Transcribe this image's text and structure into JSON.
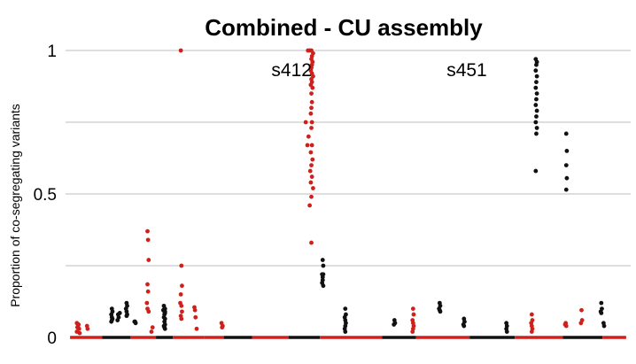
{
  "chart_data": {
    "type": "scatter",
    "title": "Combined - CU assembly",
    "xlabel": "",
    "ylabel": "Proportion of co-segregating  variants",
    "ylim": [
      0,
      1
    ],
    "xlim": [
      0,
      100
    ],
    "y_ticks": [
      {
        "value": 0,
        "label": "0"
      },
      {
        "value": 0.5,
        "label": "0.5"
      },
      {
        "value": 1,
        "label": "1"
      }
    ],
    "grid": true,
    "colors": {
      "red": "#d0201c",
      "black": "#111111",
      "grid": "#bdbdbd"
    },
    "annotations": [
      {
        "text": "s412",
        "x": 40,
        "y": 0.91
      },
      {
        "text": "s451",
        "x": 71,
        "y": 0.91
      }
    ],
    "zero_band": [
      {
        "x_start": 0.8,
        "x_end": 6.5,
        "color": "red"
      },
      {
        "x_start": 6.5,
        "x_end": 11.5,
        "color": "black"
      },
      {
        "x_start": 11.5,
        "x_end": 16.0,
        "color": "red"
      },
      {
        "x_start": 16.0,
        "x_end": 19.0,
        "color": "black"
      },
      {
        "x_start": 19.0,
        "x_end": 24.5,
        "color": "red"
      },
      {
        "x_start": 24.5,
        "x_end": 28.0,
        "color": "red"
      },
      {
        "x_start": 28.0,
        "x_end": 33.0,
        "color": "black"
      },
      {
        "x_start": 33.0,
        "x_end": 39.5,
        "color": "red"
      },
      {
        "x_start": 39.5,
        "x_end": 45.0,
        "color": "black"
      },
      {
        "x_start": 45.0,
        "x_end": 56.0,
        "color": "red"
      },
      {
        "x_start": 56.0,
        "x_end": 62.0,
        "color": "black"
      },
      {
        "x_start": 62.0,
        "x_end": 71.5,
        "color": "red"
      },
      {
        "x_start": 71.5,
        "x_end": 79.5,
        "color": "black"
      },
      {
        "x_start": 79.5,
        "x_end": 88.0,
        "color": "red"
      },
      {
        "x_start": 88.0,
        "x_end": 95.0,
        "color": "black"
      },
      {
        "x_start": 95.0,
        "x_end": 99.2,
        "color": "red"
      }
    ],
    "series": [
      {
        "name": "red",
        "color": "#d0201c",
        "points": [
          [
            2.0,
            0.05
          ],
          [
            2.2,
            0.04
          ],
          [
            2.1,
            0.035
          ],
          [
            2.4,
            0.03
          ],
          [
            2.3,
            0.045
          ],
          [
            2.0,
            0.02
          ],
          [
            2.5,
            0.015
          ],
          [
            3.8,
            0.04
          ],
          [
            3.9,
            0.03
          ],
          [
            14.5,
            0.37
          ],
          [
            14.6,
            0.34
          ],
          [
            14.7,
            0.27
          ],
          [
            14.5,
            0.185
          ],
          [
            14.6,
            0.16
          ],
          [
            14.4,
            0.12
          ],
          [
            14.5,
            0.1
          ],
          [
            14.7,
            0.09
          ],
          [
            15.2,
            0.02
          ],
          [
            15.4,
            0.035
          ],
          [
            20.5,
            0.25
          ],
          [
            20.6,
            0.18
          ],
          [
            20.4,
            0.15
          ],
          [
            20.3,
            0.12
          ],
          [
            20.5,
            0.11
          ],
          [
            20.6,
            0.09
          ],
          [
            20.4,
            0.075
          ],
          [
            20.5,
            0.065
          ],
          [
            22.8,
            0.105
          ],
          [
            22.9,
            0.095
          ],
          [
            23.0,
            0.07
          ],
          [
            23.2,
            0.03
          ],
          [
            20.4,
            1.0
          ],
          [
            27.6,
            0.05
          ],
          [
            27.8,
            0.04
          ],
          [
            27.7,
            0.035
          ],
          [
            43.5,
            0.33
          ],
          [
            43.2,
            0.46
          ],
          [
            43.5,
            0.49
          ],
          [
            43.8,
            0.52
          ],
          [
            43.4,
            0.54
          ],
          [
            43.6,
            0.56
          ],
          [
            43.3,
            0.58
          ],
          [
            43.5,
            0.6
          ],
          [
            43.7,
            0.62
          ],
          [
            43.4,
            0.645
          ],
          [
            43.6,
            0.67
          ],
          [
            42.8,
            0.67
          ],
          [
            43.0,
            0.7
          ],
          [
            43.5,
            0.73
          ],
          [
            43.6,
            0.75
          ],
          [
            43.4,
            0.78
          ],
          [
            43.5,
            0.8
          ],
          [
            43.6,
            0.82
          ],
          [
            43.5,
            0.85
          ],
          [
            43.7,
            0.87
          ],
          [
            43.4,
            0.88
          ],
          [
            43.6,
            0.89
          ],
          [
            43.5,
            0.9
          ],
          [
            43.8,
            0.91
          ],
          [
            43.6,
            0.92
          ],
          [
            43.4,
            0.93
          ],
          [
            43.5,
            0.94
          ],
          [
            43.6,
            0.95
          ],
          [
            43.7,
            0.96
          ],
          [
            43.5,
            0.97
          ],
          [
            43.6,
            0.98
          ],
          [
            43.8,
            0.99
          ],
          [
            43.2,
            1.0
          ],
          [
            42.9,
            1.0
          ],
          [
            43.5,
            1.0
          ],
          [
            42.5,
            0.75
          ],
          [
            61.5,
            0.1
          ],
          [
            61.6,
            0.08
          ],
          [
            61.4,
            0.06
          ],
          [
            61.5,
            0.05
          ],
          [
            61.6,
            0.04
          ],
          [
            61.5,
            0.03
          ],
          [
            61.4,
            0.02
          ],
          [
            82.5,
            0.08
          ],
          [
            82.6,
            0.06
          ],
          [
            82.4,
            0.05
          ],
          [
            82.5,
            0.04
          ],
          [
            82.6,
            0.03
          ],
          [
            82.5,
            0.02
          ],
          [
            88.5,
            0.05
          ],
          [
            88.6,
            0.04
          ],
          [
            88.4,
            0.045
          ],
          [
            91.3,
            0.095
          ],
          [
            91.4,
            0.06
          ],
          [
            91.2,
            0.05
          ]
        ]
      },
      {
        "name": "black",
        "color": "#111111",
        "points": [
          [
            17.4,
            0.11
          ],
          [
            17.6,
            0.1
          ],
          [
            17.3,
            0.095
          ],
          [
            17.5,
            0.09
          ],
          [
            17.6,
            0.085
          ],
          [
            17.5,
            0.08
          ],
          [
            17.4,
            0.07
          ],
          [
            17.6,
            0.065
          ],
          [
            17.5,
            0.055
          ],
          [
            17.6,
            0.045
          ],
          [
            17.4,
            0.04
          ],
          [
            17.5,
            0.035
          ],
          [
            17.6,
            0.03
          ],
          [
            8.2,
            0.1
          ],
          [
            8.3,
            0.09
          ],
          [
            8.1,
            0.08
          ],
          [
            8.2,
            0.07
          ],
          [
            8.3,
            0.065
          ],
          [
            8.2,
            0.06
          ],
          [
            8.1,
            0.055
          ],
          [
            9.3,
            0.08
          ],
          [
            9.4,
            0.07
          ],
          [
            9.2,
            0.06
          ],
          [
            10.8,
            0.12
          ],
          [
            10.9,
            0.11
          ],
          [
            10.7,
            0.1
          ],
          [
            10.8,
            0.09
          ],
          [
            10.9,
            0.08
          ],
          [
            10.8,
            0.075
          ],
          [
            12.3,
            0.055
          ],
          [
            12.4,
            0.05
          ],
          [
            12.2,
            0.055
          ],
          [
            9.6,
            0.085
          ],
          [
            17.5,
            0.1
          ],
          [
            17.6,
            0.09
          ],
          [
            45.5,
            0.27
          ],
          [
            45.6,
            0.25
          ],
          [
            45.4,
            0.22
          ],
          [
            45.5,
            0.2
          ],
          [
            45.6,
            0.18
          ],
          [
            45.4,
            0.19
          ],
          [
            45.5,
            0.21
          ],
          [
            45.6,
            0.22
          ],
          [
            49.5,
            0.1
          ],
          [
            49.6,
            0.08
          ],
          [
            49.4,
            0.07
          ],
          [
            49.5,
            0.06
          ],
          [
            49.6,
            0.05
          ],
          [
            49.5,
            0.04
          ],
          [
            49.4,
            0.03
          ],
          [
            49.5,
            0.02
          ],
          [
            58.2,
            0.06
          ],
          [
            58.3,
            0.05
          ],
          [
            58.1,
            0.045
          ],
          [
            66.2,
            0.12
          ],
          [
            66.3,
            0.11
          ],
          [
            66.1,
            0.1
          ],
          [
            66.2,
            0.095
          ],
          [
            66.3,
            0.09
          ],
          [
            70.5,
            0.065
          ],
          [
            70.6,
            0.055
          ],
          [
            70.4,
            0.045
          ],
          [
            70.5,
            0.04
          ],
          [
            78.0,
            0.05
          ],
          [
            78.1,
            0.04
          ],
          [
            78.0,
            0.03
          ],
          [
            78.1,
            0.02
          ],
          [
            83.2,
            0.97
          ],
          [
            83.4,
            0.96
          ],
          [
            83.3,
            0.95
          ],
          [
            83.2,
            0.93
          ],
          [
            83.4,
            0.91
          ],
          [
            83.3,
            0.89
          ],
          [
            83.2,
            0.87
          ],
          [
            83.4,
            0.85
          ],
          [
            83.3,
            0.83
          ],
          [
            83.2,
            0.81
          ],
          [
            83.4,
            0.79
          ],
          [
            83.3,
            0.77
          ],
          [
            83.2,
            0.75
          ],
          [
            83.4,
            0.73
          ],
          [
            83.3,
            0.71
          ],
          [
            83.2,
            0.58
          ],
          [
            88.6,
            0.71
          ],
          [
            88.7,
            0.65
          ],
          [
            88.6,
            0.6
          ],
          [
            88.7,
            0.555
          ],
          [
            88.6,
            0.515
          ],
          [
            94.8,
            0.12
          ],
          [
            94.9,
            0.1
          ],
          [
            94.7,
            0.09
          ],
          [
            94.8,
            0.085
          ],
          [
            95.2,
            0.05
          ],
          [
            95.3,
            0.04
          ]
        ]
      }
    ]
  }
}
